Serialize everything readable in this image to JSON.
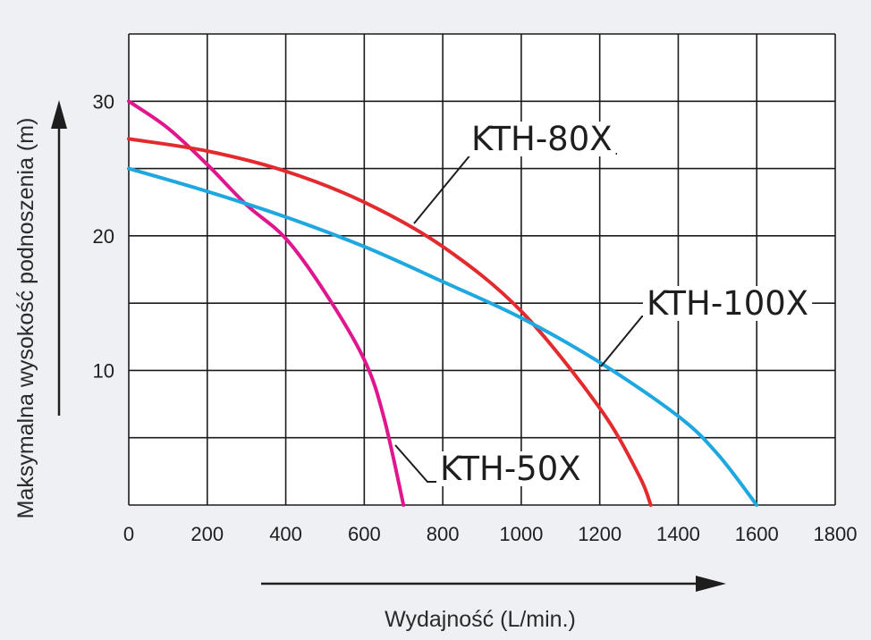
{
  "chart_data": {
    "type": "line",
    "xlabel": "Wydajność (L/min.)",
    "ylabel": "Maksymalna wysokość podnoszenia (m)",
    "xlim": [
      0,
      1800
    ],
    "ylim": [
      0,
      30
    ],
    "x_ticks": [
      "0",
      "200",
      "400",
      "600",
      "800",
      "1000",
      "1200",
      "1400",
      "1600",
      "1800"
    ],
    "y_ticks": [
      "10",
      "20",
      "30"
    ],
    "grid": true,
    "series": [
      {
        "name": "KTH-50X",
        "color": "#e0168f",
        "x": [
          0,
          100,
          200,
          300,
          400,
          500,
          600,
          650,
          700
        ],
        "y": [
          30,
          28,
          25.3,
          22.3,
          19.8,
          15.8,
          10.8,
          6.5,
          0
        ]
      },
      {
        "name": "KTH-80X",
        "color": "#e32b2f",
        "x": [
          0,
          200,
          400,
          600,
          800,
          1000,
          1200,
          1300,
          1330
        ],
        "y": [
          27.2,
          26.3,
          24.8,
          22.5,
          19.2,
          14.4,
          7.2,
          2.2,
          0
        ]
      },
      {
        "name": "KTH-100X",
        "color": "#1fa7df",
        "x": [
          0,
          200,
          400,
          600,
          800,
          1000,
          1200,
          1400,
          1500,
          1600
        ],
        "y": [
          25,
          23.3,
          21.4,
          19.2,
          16.6,
          13.9,
          10.6,
          6.6,
          3.8,
          0
        ]
      }
    ]
  }
}
